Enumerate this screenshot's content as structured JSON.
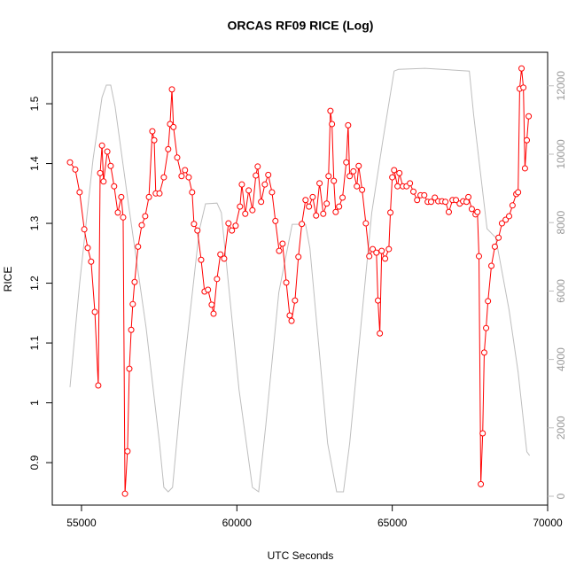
{
  "chart_data": {
    "type": "line",
    "title": "ORCAS RF09 RICE (Log)",
    "xlabel": "UTC Seconds",
    "ylabel": "RICE",
    "xlim": [
      54060,
      70000
    ],
    "xticks": [
      55000,
      60000,
      65000,
      70000
    ],
    "ylim": [
      0.829,
      1.586
    ],
    "yticks": [
      0.9,
      1.0,
      1.1,
      1.2,
      1.3,
      1.4,
      1.5
    ],
    "y2lim": [
      -259,
      12979
    ],
    "y2ticks": [
      0,
      2000,
      4000,
      6000,
      8000,
      10000,
      12000
    ],
    "series": [
      {
        "color": "#ff0000",
        "markers": true,
        "x": [
          54630,
          54800,
          54940,
          55090,
          55200,
          55310,
          55430,
          55540,
          55600,
          55660,
          55710,
          55830,
          55940,
          56050,
          56170,
          56280,
          56340,
          56400,
          56480,
          56540,
          56600,
          56650,
          56710,
          56820,
          56940,
          57050,
          57170,
          57280,
          57340,
          57390,
          57510,
          57650,
          57790,
          57850,
          57910,
          57960,
          58080,
          58220,
          58330,
          58450,
          58560,
          58620,
          58730,
          58850,
          58960,
          59070,
          59190,
          59250,
          59360,
          59470,
          59590,
          59730,
          59840,
          59960,
          60100,
          60160,
          60270,
          60380,
          60500,
          60610,
          60670,
          60780,
          60900,
          61010,
          61130,
          61240,
          61360,
          61470,
          61590,
          61700,
          61760,
          61870,
          61980,
          62090,
          62210,
          62320,
          62440,
          62550,
          62660,
          62780,
          62890,
          62950,
          63010,
          63060,
          63120,
          63180,
          63290,
          63400,
          63520,
          63580,
          63630,
          63750,
          63860,
          63920,
          64030,
          64150,
          64260,
          64370,
          64490,
          64540,
          64600,
          64660,
          64770,
          64890,
          64940,
          65000,
          65060,
          65170,
          65230,
          65340,
          65460,
          65570,
          65680,
          65800,
          65910,
          66030,
          66140,
          66250,
          66370,
          66480,
          66600,
          66710,
          66820,
          66940,
          67050,
          67170,
          67280,
          67390,
          67450,
          67560,
          67680,
          67740,
          67790,
          67850,
          67910,
          67960,
          68020,
          68080,
          68190,
          68300,
          68420,
          68530,
          68650,
          68760,
          68870,
          68990,
          69050,
          69100,
          69160,
          69220,
          69270,
          69330,
          69390
        ],
        "values": [
          1.402,
          1.39,
          1.352,
          1.29,
          1.259,
          1.236,
          1.152,
          1.029,
          1.384,
          1.43,
          1.37,
          1.42,
          1.396,
          1.362,
          1.318,
          1.344,
          1.31,
          0.848,
          0.919,
          1.057,
          1.122,
          1.165,
          1.202,
          1.261,
          1.297,
          1.312,
          1.344,
          1.454,
          1.439,
          1.35,
          1.35,
          1.377,
          1.424,
          1.466,
          1.524,
          1.461,
          1.41,
          1.379,
          1.389,
          1.377,
          1.352,
          1.299,
          1.288,
          1.239,
          1.186,
          1.189,
          1.164,
          1.149,
          1.207,
          1.248,
          1.241,
          1.3,
          1.288,
          1.296,
          1.328,
          1.365,
          1.316,
          1.355,
          1.322,
          1.38,
          1.395,
          1.336,
          1.365,
          1.381,
          1.352,
          1.304,
          1.254,
          1.266,
          1.201,
          1.146,
          1.137,
          1.171,
          1.244,
          1.299,
          1.339,
          1.328,
          1.344,
          1.313,
          1.367,
          1.316,
          1.333,
          1.379,
          1.488,
          1.466,
          1.371,
          1.319,
          1.328,
          1.343,
          1.402,
          1.464,
          1.379,
          1.387,
          1.362,
          1.396,
          1.356,
          1.3,
          1.245,
          1.257,
          1.251,
          1.171,
          1.116,
          1.254,
          1.241,
          1.257,
          1.318,
          1.377,
          1.389,
          1.362,
          1.384,
          1.362,
          1.362,
          1.367,
          1.353,
          1.339,
          1.347,
          1.347,
          1.336,
          1.336,
          1.343,
          1.337,
          1.337,
          1.336,
          1.319,
          1.339,
          1.339,
          1.333,
          1.337,
          1.336,
          1.344,
          1.324,
          1.315,
          1.319,
          1.245,
          0.864,
          0.949,
          1.084,
          1.125,
          1.17,
          1.229,
          1.261,
          1.276,
          1.3,
          1.306,
          1.312,
          1.33,
          1.349,
          1.352,
          1.525,
          1.559,
          1.527,
          1.392,
          1.439,
          1.479
        ]
      },
      {
        "color": "#bebebe",
        "markers": false,
        "axis": "y2",
        "x": [
          54630,
          54940,
          55370,
          55660,
          55800,
          55940,
          56080,
          56510,
          57080,
          57510,
          57650,
          57790,
          57930,
          58220,
          58790,
          58990,
          59360,
          59500,
          60070,
          60500,
          60700,
          60930,
          61350,
          61780,
          62210,
          62350,
          62920,
          63210,
          63430,
          63630,
          64340,
          64690,
          65060,
          65200,
          66050,
          67480,
          67620,
          68050,
          68330,
          68760,
          69050,
          69330,
          69420
        ],
        "values": [
          3190,
          6220,
          9840,
          11660,
          12020,
          12020,
          11400,
          8550,
          4920,
          1550,
          260,
          130,
          260,
          3110,
          7770,
          8550,
          8570,
          8290,
          3110,
          260,
          130,
          2070,
          5960,
          7950,
          7950,
          7250,
          1550,
          130,
          130,
          1550,
          8290,
          10360,
          12430,
          12480,
          12510,
          12430,
          11140,
          7820,
          7560,
          5440,
          3630,
          1300,
          1190
        ]
      }
    ]
  }
}
